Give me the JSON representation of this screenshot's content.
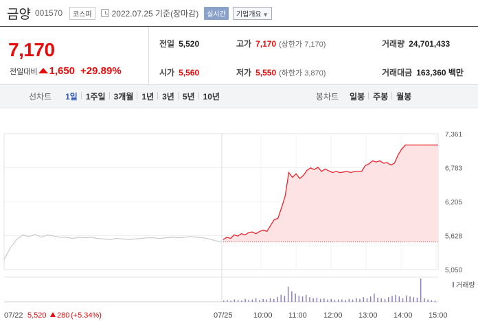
{
  "header": {
    "stock_name": "금양",
    "stock_code": "001570",
    "market_badge": "코스피",
    "base_date": "2022.07.25 기준(장마감)",
    "realtime_label": "실시간",
    "company_info_label": "기업개요"
  },
  "price": {
    "current": "7,170",
    "change_label": "전일대비",
    "change_value": "1,650",
    "change_pct": "+29.89%",
    "change_direction": "up",
    "prev_close_label": "전일",
    "prev_close": "5,520",
    "high_label": "고가",
    "high": "7,170",
    "upper_limit": "(상한가 7,170)",
    "volume_label": "거래량",
    "volume": "24,701,433",
    "open_label": "시가",
    "open": "5,560",
    "low_label": "저가",
    "low": "5,550",
    "lower_limit": "(하한가 3,870)",
    "amount_label": "거래대금",
    "amount": "163,360 백만",
    "up_color": "#e60c0c"
  },
  "period_bar": {
    "label": "선차트",
    "items": [
      "1일",
      "1주일",
      "3개월",
      "1년",
      "3년",
      "5년",
      "10년"
    ],
    "active": "1일",
    "candle_label": "봉차트",
    "candle_items": [
      "일봉",
      "주봉",
      "월봉"
    ]
  },
  "chart_data": {
    "type": "line",
    "y_ticks": [
      "7,361",
      "6,783",
      "6,205",
      "5,628",
      "5,050"
    ],
    "ylim": [
      5050,
      7361
    ],
    "reference_price": 5520,
    "volume_legend": "거래량",
    "prev_day": {
      "date": "07/22",
      "close": "5,520",
      "change": "280",
      "change_pct": "(+5.34%)",
      "values": [
        5220,
        5420,
        5560,
        5640,
        5610,
        5650,
        5600,
        5640,
        5620,
        5600,
        5600,
        5580,
        5600,
        5590,
        5600,
        5580,
        5570,
        5560,
        5580,
        5570,
        5560,
        5570,
        5580,
        5590,
        5590,
        5580,
        5590,
        5600,
        5590,
        5600,
        5610,
        5600,
        5590,
        5570,
        5540,
        5520
      ]
    },
    "today": {
      "x_ticks": [
        "07/25",
        "10:00",
        "11:00",
        "12:00",
        "13:00",
        "14:00",
        "15:00"
      ],
      "values": [
        5560,
        5600,
        5580,
        5640,
        5620,
        5660,
        5640,
        5680,
        5690,
        5660,
        5700,
        5720,
        5700,
        5800,
        5900,
        5920,
        6100,
        6300,
        6700,
        6620,
        6680,
        6600,
        6650,
        6740,
        6780,
        6750,
        6790,
        6720,
        6760,
        6730,
        6700,
        6720,
        6700,
        6710,
        6720,
        6700,
        6720,
        6720,
        6720,
        6820,
        6850,
        6900,
        6880,
        6900,
        6860,
        6870,
        6830,
        6860,
        7000,
        7100,
        7170,
        7170,
        7170,
        7170,
        7170,
        7170,
        7170,
        7170,
        7170,
        7170
      ]
    },
    "volume": {
      "values": [
        2,
        3,
        2,
        4,
        3,
        2,
        5,
        3,
        4,
        6,
        3,
        5,
        4,
        6,
        5,
        8,
        12,
        10,
        26,
        18,
        14,
        10,
        9,
        12,
        8,
        6,
        7,
        5,
        6,
        4,
        5,
        3,
        4,
        4,
        3,
        5,
        4,
        6,
        5,
        8,
        6,
        9,
        14,
        7,
        6,
        5,
        8,
        10,
        12,
        9,
        6,
        11,
        9,
        8,
        7,
        40,
        6,
        4,
        3,
        2
      ]
    },
    "colors": {
      "today_line": "#e8222a",
      "today_fill": "#fde3e3",
      "prev_line": "#c9c9c9",
      "volume_bar": "#8a7db8",
      "ref_line": "#e8222a"
    }
  }
}
